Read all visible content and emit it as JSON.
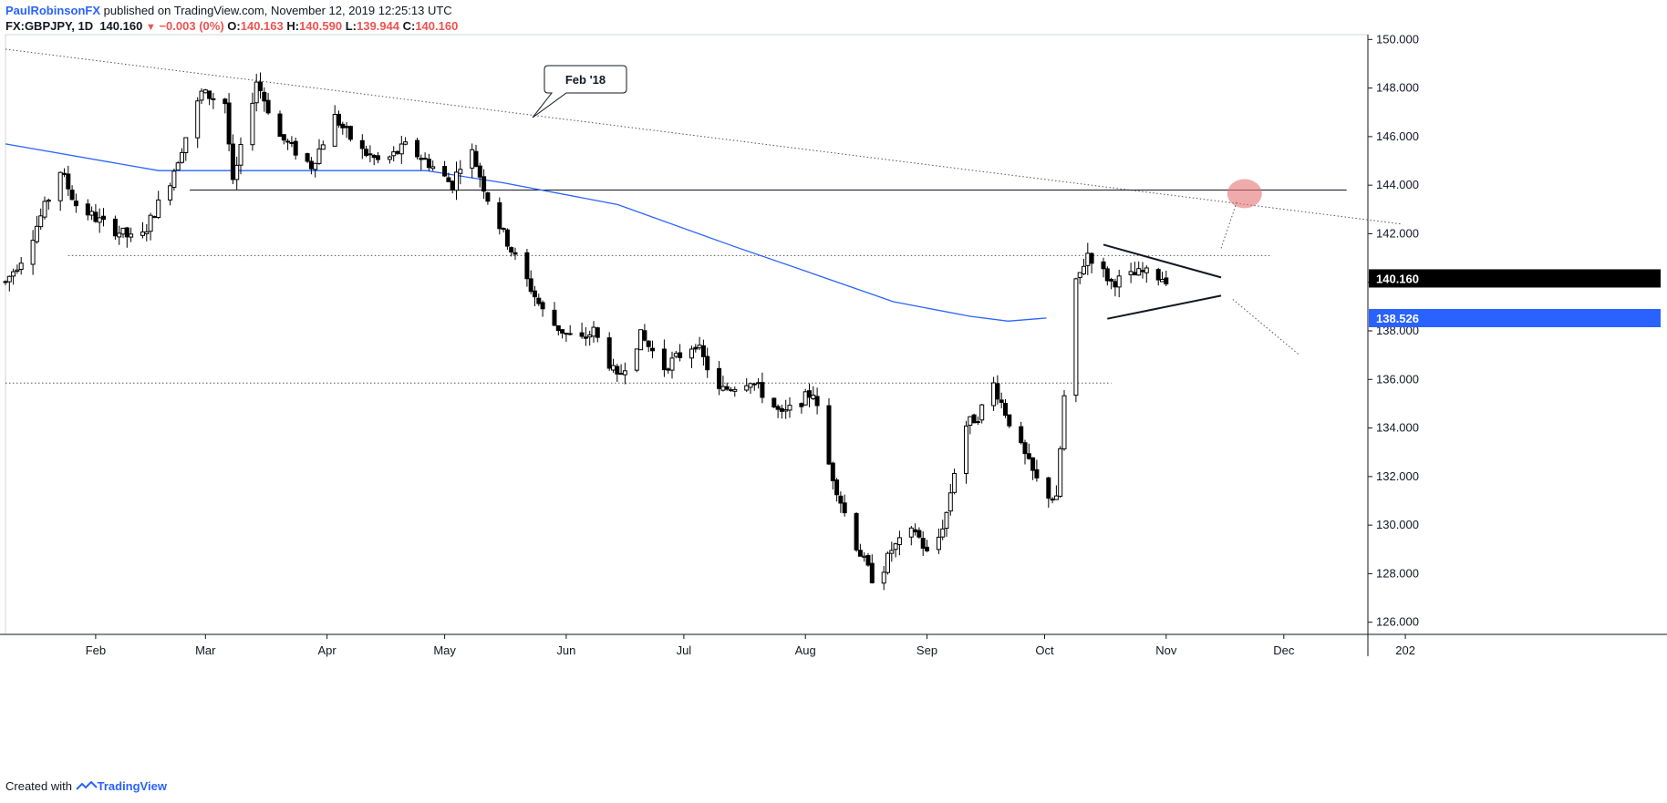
{
  "header": {
    "author": "PaulRobinsonFX",
    "published": "published on TradingView.com, November 12, 2019 12:25:13 UTC",
    "symbol": "FX:GBPJPY, 1D",
    "last": "140.160",
    "change_arrow": "▼",
    "change": "−0.003 (0%)",
    "o_label": "O:",
    "o_value": "140.163",
    "h_label": "H:",
    "h_value": "140.590",
    "l_label": "L:",
    "l_value": "139.944",
    "c_label": "C:",
    "c_value": "140.160"
  },
  "footer": {
    "created_with": "Created with",
    "brand": "TradingView"
  },
  "annotations": {
    "callout": "Feb '18",
    "target_zone_color": "#e57373"
  },
  "price_labels": {
    "last_price": "140.160",
    "ma_price": "138.526",
    "last_color": "#000000",
    "ma_color": "#2962ff"
  },
  "chart_data": {
    "type": "candlestick",
    "title": "",
    "xlabel": "",
    "ylabel": "",
    "ylim": [
      125.5,
      150.2
    ],
    "y_ticks": [
      "150.000",
      "148.000",
      "146.000",
      "144.000",
      "142.000",
      "140.000",
      "138.000",
      "136.000",
      "134.000",
      "132.000",
      "130.000",
      "128.000",
      "126.000"
    ],
    "x_ticks": [
      "Feb",
      "Mar",
      "Apr",
      "May",
      "Jun",
      "Jul",
      "Aug",
      "Sep",
      "Oct",
      "Nov",
      "Dec",
      "202"
    ],
    "start_date": "2019-01-09",
    "colors": {
      "up": "#ffffff",
      "down": "#000000",
      "wick": "#000000",
      "ma": "#2962ff"
    },
    "trading_days": 218,
    "ohlc_summary": "daily candles, derived path below",
    "path_prices": [
      [
        0,
        140.0
      ],
      [
        5,
        141.2
      ],
      [
        14,
        144.6
      ],
      [
        18,
        143.2
      ],
      [
        26,
        142.3
      ],
      [
        30,
        142.0
      ],
      [
        34,
        141.6
      ],
      [
        42,
        144.2
      ],
      [
        50,
        147.8
      ],
      [
        56,
        147.4
      ],
      [
        58,
        144.0
      ],
      [
        64,
        148.3
      ],
      [
        70,
        146.0
      ],
      [
        78,
        144.8
      ],
      [
        84,
        146.8
      ],
      [
        90,
        145.5
      ],
      [
        96,
        144.9
      ],
      [
        102,
        145.6
      ],
      [
        108,
        144.9
      ],
      [
        114,
        144.0
      ],
      [
        118,
        145.8
      ],
      [
        124,
        143.0
      ],
      [
        130,
        141.0
      ],
      [
        138,
        138.5
      ],
      [
        146,
        137.5
      ],
      [
        150,
        138.0
      ],
      [
        156,
        136.0
      ],
      [
        162,
        137.8
      ],
      [
        168,
        136.5
      ],
      [
        176,
        137.5
      ],
      [
        182,
        135.5
      ],
      [
        190,
        136.0
      ],
      [
        198,
        134.5
      ],
      [
        206,
        135.5
      ],
      [
        210,
        132.5
      ],
      [
        216,
        129.5
      ],
      [
        222,
        127.5
      ],
      [
        226,
        129.0
      ],
      [
        232,
        129.8
      ],
      [
        236,
        128.5
      ],
      [
        240,
        130.5
      ],
      [
        244,
        134.0
      ],
      [
        248,
        134.5
      ],
      [
        252,
        135.8
      ],
      [
        258,
        133.5
      ],
      [
        264,
        131.5
      ],
      [
        268,
        131.0
      ],
      [
        272,
        139.5
      ],
      [
        276,
        141.2
      ],
      [
        282,
        140.0
      ],
      [
        290,
        140.4
      ],
      [
        296,
        140.16
      ]
    ],
    "series": [
      {
        "name": "",
        "type": "ma",
        "points": [
          [
            0,
            145.7
          ],
          [
            40,
            144.6
          ],
          [
            80,
            144.6
          ],
          [
            110,
            144.6
          ],
          [
            130,
            144.1
          ],
          [
            160,
            143.2
          ],
          [
            190,
            141.5
          ],
          [
            212,
            140.3
          ],
          [
            232,
            139.2
          ],
          [
            252,
            138.6
          ],
          [
            262,
            138.4
          ],
          [
            272,
            138.53
          ]
        ]
      }
    ],
    "lines": [
      {
        "kind": "trend",
        "style": "dotted",
        "from": [
          "2019-01-09",
          149.6
        ],
        "to": [
          "2019-12-31",
          142.4
        ]
      },
      {
        "kind": "horizontal",
        "style": "solid",
        "y": 143.8,
        "from": "2019-02-25",
        "to": "2019-12-17"
      },
      {
        "kind": "horizontal",
        "style": "dotted",
        "y": 141.1,
        "from": "2019-01-25",
        "to": "2019-11-28"
      },
      {
        "kind": "horizontal",
        "style": "dotted",
        "y": 135.85,
        "from": "2019-01-09",
        "to": "2019-10-18"
      },
      {
        "kind": "triangle-upper",
        "style": "solid",
        "from": [
          "2019-10-16",
          141.55
        ],
        "to": [
          "2019-11-15",
          140.2
        ]
      },
      {
        "kind": "triangle-lower",
        "style": "solid",
        "from": [
          "2019-10-17",
          138.5
        ],
        "to": [
          "2019-11-15",
          139.45
        ]
      }
    ],
    "grid": true,
    "legend": "none"
  }
}
